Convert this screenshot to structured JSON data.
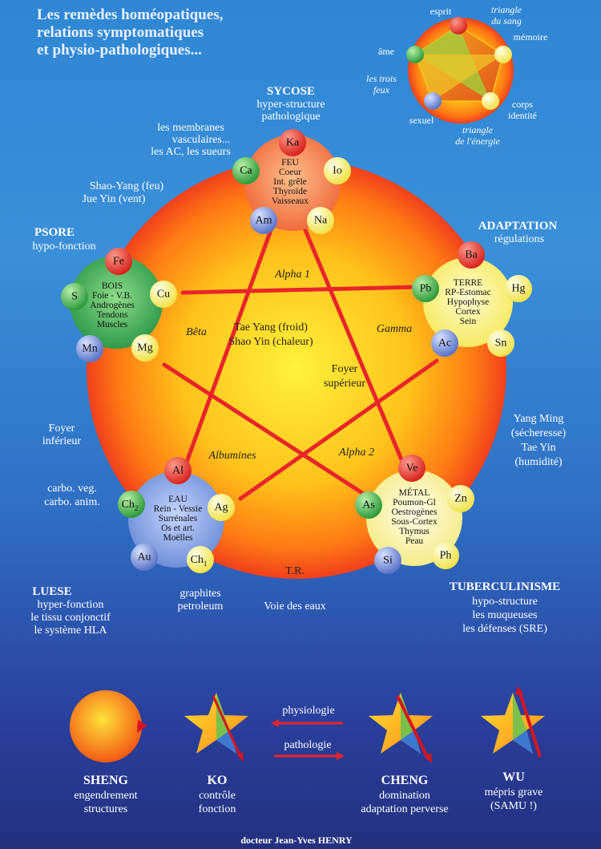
{
  "title": [
    "Les remèdes homéopatiques,",
    "relations symptomatiques",
    "et physio-pathologiques..."
  ],
  "small_diagram": {
    "esprit": "esprit",
    "triangle_sang": [
      "triangle",
      "du sang"
    ],
    "memoire": "mémoire",
    "ame": "âme",
    "trois_feux": [
      "les trois",
      "feux"
    ],
    "sexuel": "sexuel",
    "corps": [
      "corps",
      "identité"
    ],
    "triangle_energie": [
      "triangle",
      "de l'énergie"
    ]
  },
  "sycose": {
    "title": "SYCOSE",
    "lines": [
      "hyper-structure",
      "pathologique"
    ]
  },
  "membranes": [
    "les membranes",
    "vasculaires...",
    "les AC, les sueurs"
  ],
  "shao_yang": [
    "Shao-Yang (feu)",
    "Jue Yin (vent)"
  ],
  "psore": {
    "title": "PSORE",
    "lines": [
      "hypo-fonction"
    ]
  },
  "adaptation": {
    "title": "ADAPTATION",
    "lines": [
      "régulations"
    ]
  },
  "yang_ming": [
    "Yang Ming",
    "(sécheresse)",
    "Tae Yin",
    "(humidité)"
  ],
  "foyer_inferieur": [
    "Foyer",
    "inférieur"
  ],
  "carbo": [
    "carbo. veg.",
    "carbo. anim."
  ],
  "luese": {
    "title": "LUESE",
    "lines": [
      "hyper-fonction",
      "le tissu conjonctif",
      "le système HLA"
    ]
  },
  "graphites": [
    "graphites",
    "petroleum"
  ],
  "voie_des_eaux": "Voie des eaux",
  "tuberculinisme": {
    "title": "TUBERCULINISME",
    "lines": [
      "hypo-structure",
      "les muqueuses",
      "les défenses (SRE)"
    ]
  },
  "center": {
    "main": [
      "Tae Yang (froid)",
      "Shao Yin (chaleur)"
    ],
    "foyer": [
      "Foyer",
      "supérieur"
    ],
    "alpha1": "Alpha 1",
    "beta": "Bêta",
    "gamma": "Gamma",
    "albumines": "Albumines",
    "alpha2": "Alpha 2",
    "tr": "T.R."
  },
  "nodes": {
    "feu": {
      "lines": [
        "FEU",
        "Coeur",
        "Int. grêle",
        "Thyroïde",
        "Vaisseaux"
      ],
      "balls": [
        "Ka",
        "Ca",
        "Io",
        "Am",
        "Na"
      ]
    },
    "bois": {
      "lines": [
        "BOIS",
        "Foie - V.B.",
        "Androgènes",
        "Tendons",
        "Muscles"
      ],
      "balls": [
        "Fe",
        "S",
        "Cu",
        "Mn",
        "Mg"
      ]
    },
    "terre": {
      "lines": [
        "TERRE",
        "RP-Estomac",
        "Hypophyse",
        "Cortex",
        "Sein"
      ],
      "balls": [
        "Ba",
        "Pb",
        "Hg",
        "Ac",
        "Sn"
      ]
    },
    "eau": {
      "lines": [
        "EAU",
        "Rein - Vessie",
        "Surrénales",
        "Os et art.",
        "Moëlles"
      ],
      "balls": [
        "Al",
        "Ch",
        "Ag",
        "Au",
        "Ch"
      ],
      "subs": [
        "2",
        "1"
      ]
    },
    "metal": {
      "lines": [
        "MÉTAL",
        "Poumon-Gl",
        "Oestrogènes",
        "Sous-Cortex",
        "Thymus",
        "Peau"
      ],
      "balls": [
        "Ve",
        "As",
        "Zn",
        "Si",
        "Ph"
      ]
    }
  },
  "legend": {
    "physiologie": "physiologie",
    "pathologie": "pathologie",
    "sheng": {
      "title": "SHENG",
      "lines": [
        "engendrement",
        "structures"
      ]
    },
    "ko": {
      "title": "KO",
      "lines": [
        "contrôle",
        "fonction"
      ]
    },
    "cheng": {
      "title": "CHENG",
      "lines": [
        "domination",
        "adaptation perverse"
      ]
    },
    "wu": {
      "title": "WU",
      "lines": [
        "mépris grave",
        "(SAMU !)"
      ]
    }
  },
  "footer": "docteur Jean-Yves HENRY",
  "colors": {
    "feu": "#f2704a",
    "bois": "#3fae5a",
    "terre": "#fff27a",
    "eau": "#7f9de0",
    "metal": "#fff6a8",
    "big_circle_edge": "#f0341e",
    "big_circle_center": "#ffe530",
    "lines": "#e8242a"
  }
}
